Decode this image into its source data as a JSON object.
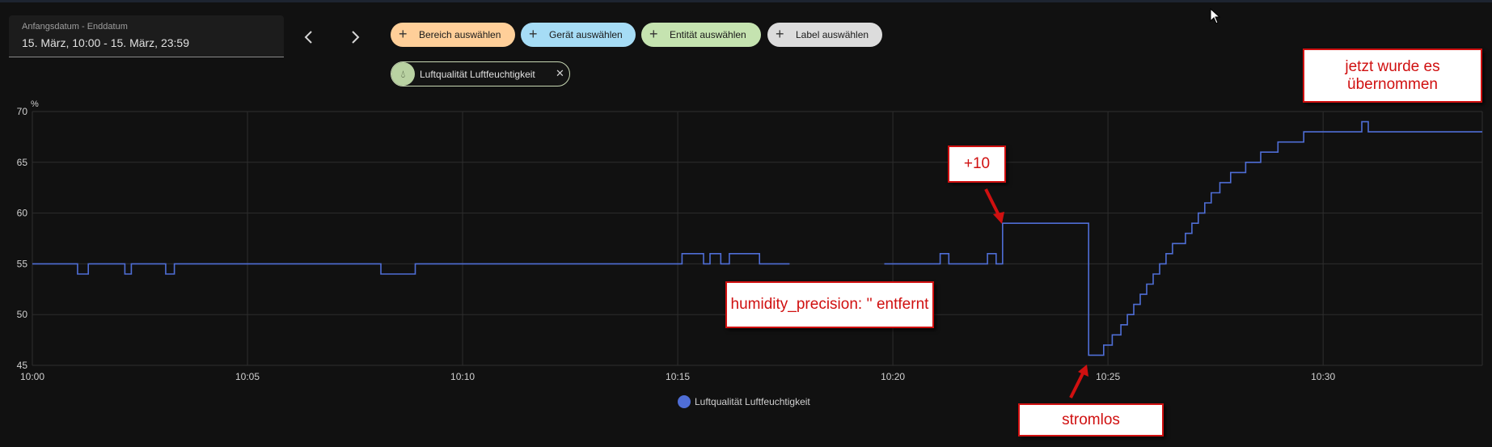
{
  "date_picker": {
    "label": "Anfangsdatum - Enddatum",
    "value": "15. März, 10:00 - 15. März, 23:59"
  },
  "nav": {
    "prev_icon": "chevron-left-icon",
    "next_icon": "chevron-right-icon"
  },
  "filters": [
    {
      "label": "Bereich auswählen",
      "color": "#ffcf99"
    },
    {
      "label": "Gerät auswählen",
      "color": "#a6dcf5"
    },
    {
      "label": "Entität auswählen",
      "color": "#c5e3b0"
    },
    {
      "label": "Label auswählen",
      "color": "#dcdcdc"
    }
  ],
  "entity_chip": {
    "label": "Luftqualität Luftfeuchtigkeit",
    "icon": "water-percent-icon"
  },
  "chart_data": {
    "type": "line",
    "ylabel": "%",
    "ylim": [
      45,
      70
    ],
    "y_ticks": [
      "45",
      "50",
      "55",
      "60",
      "65",
      "70"
    ],
    "xlim_minutes": [
      0,
      33.7
    ],
    "x_ticks": [
      "10:00",
      "10:05",
      "10:10",
      "10:15",
      "10:20",
      "10:25",
      "10:30"
    ],
    "grid": true,
    "legend_position": "bottom",
    "line_color": "#4f6ed6",
    "series": [
      {
        "name": "Luftqualität Luftfeuchtigkeit",
        "segments": [
          [
            [
              0,
              55
            ],
            [
              1.05,
              55
            ],
            [
              1.05,
              54
            ],
            [
              1.3,
              54
            ],
            [
              1.3,
              55
            ],
            [
              2.15,
              55
            ],
            [
              2.15,
              54
            ],
            [
              2.3,
              54
            ],
            [
              2.3,
              55
            ],
            [
              3.1,
              55
            ],
            [
              3.1,
              54
            ],
            [
              3.3,
              54
            ],
            [
              3.3,
              55
            ],
            [
              8.1,
              55
            ],
            [
              8.1,
              54
            ],
            [
              8.9,
              54
            ],
            [
              8.9,
              55
            ],
            [
              15.1,
              55
            ],
            [
              15.1,
              56
            ],
            [
              15.6,
              56
            ],
            [
              15.6,
              55
            ],
            [
              15.75,
              55
            ],
            [
              15.75,
              56
            ],
            [
              16.0,
              56
            ],
            [
              16.0,
              55
            ],
            [
              16.2,
              55
            ],
            [
              16.2,
              56
            ],
            [
              16.9,
              56
            ],
            [
              16.9,
              55
            ],
            [
              17.6,
              55
            ]
          ],
          [
            [
              19.8,
              55
            ],
            [
              21.1,
              55
            ],
            [
              21.1,
              56
            ],
            [
              21.3,
              56
            ],
            [
              21.3,
              55
            ],
            [
              22.2,
              55
            ],
            [
              22.2,
              56
            ],
            [
              22.4,
              56
            ],
            [
              22.4,
              55
            ],
            [
              22.55,
              55
            ],
            [
              22.55,
              59
            ],
            [
              24.55,
              59
            ],
            [
              24.55,
              46
            ],
            [
              24.9,
              46
            ],
            [
              24.9,
              47
            ],
            [
              25.1,
              47
            ],
            [
              25.1,
              48
            ],
            [
              25.3,
              48
            ],
            [
              25.3,
              49
            ],
            [
              25.45,
              49
            ],
            [
              25.45,
              50
            ],
            [
              25.6,
              50
            ],
            [
              25.6,
              51
            ],
            [
              25.75,
              51
            ],
            [
              25.75,
              52
            ],
            [
              25.9,
              52
            ],
            [
              25.9,
              53
            ],
            [
              26.05,
              53
            ],
            [
              26.05,
              54
            ],
            [
              26.2,
              54
            ],
            [
              26.2,
              55
            ],
            [
              26.35,
              55
            ],
            [
              26.35,
              56
            ],
            [
              26.5,
              56
            ],
            [
              26.5,
              57
            ],
            [
              26.8,
              57
            ],
            [
              26.8,
              58
            ],
            [
              26.95,
              58
            ],
            [
              26.95,
              59
            ],
            [
              27.1,
              59
            ],
            [
              27.1,
              60
            ],
            [
              27.25,
              60
            ],
            [
              27.25,
              61
            ],
            [
              27.4,
              61
            ],
            [
              27.4,
              62
            ],
            [
              27.6,
              62
            ],
            [
              27.6,
              63
            ],
            [
              27.85,
              63
            ],
            [
              27.85,
              64
            ],
            [
              28.2,
              64
            ],
            [
              28.2,
              65
            ],
            [
              28.55,
              65
            ],
            [
              28.55,
              66
            ],
            [
              28.95,
              66
            ],
            [
              28.95,
              67
            ],
            [
              29.55,
              67
            ],
            [
              29.55,
              68
            ],
            [
              30.9,
              68
            ],
            [
              30.9,
              69
            ],
            [
              31.05,
              69
            ],
            [
              31.05,
              68
            ],
            [
              33.7,
              68
            ]
          ]
        ]
      }
    ]
  },
  "annotations": [
    {
      "text": "+10"
    },
    {
      "text": "humidity_precision: '' entfernt"
    },
    {
      "text": "stromlos"
    },
    {
      "text": "jetzt wurde es übernommen"
    }
  ]
}
